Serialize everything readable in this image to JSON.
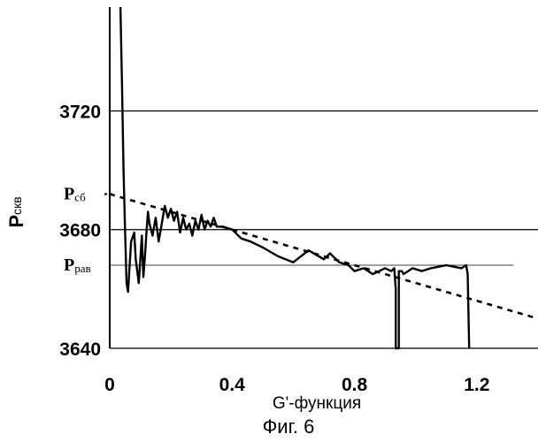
{
  "chart_data": {
    "type": "line",
    "ylabel": {
      "main": "P",
      "sub": "скв"
    },
    "xlabel": "G'-функция",
    "caption": "Фиг. 6",
    "xlim": [
      0,
      1.4
    ],
    "ylim": [
      3640,
      3755
    ],
    "x_ticks": [
      "0",
      "0.4",
      "0.8",
      "1.2"
    ],
    "x_tick_values": [
      0,
      0.4,
      0.8,
      1.2
    ],
    "y_ticks": [
      "3720",
      "3680",
      "3640"
    ],
    "y_tick_values": [
      3720,
      3680,
      3640
    ],
    "grid": "horizontal",
    "reference_lines": [
      {
        "label_main": "P",
        "label_sub": "сб",
        "y": 3692,
        "style": "dotted-marker"
      },
      {
        "label_main": "P",
        "label_sub": "рав",
        "y": 3668,
        "style": "thin-line"
      }
    ],
    "series": [
      {
        "style": "solid",
        "x": [
          0.035,
          0.04,
          0.045,
          0.05,
          0.055,
          0.06,
          0.065,
          0.07,
          0.08,
          0.085,
          0.095,
          0.1,
          0.105,
          0.11,
          0.115,
          0.12,
          0.125,
          0.13,
          0.14,
          0.15,
          0.16,
          0.17,
          0.18,
          0.185,
          0.19,
          0.2,
          0.21,
          0.22,
          0.23,
          0.24,
          0.25,
          0.26,
          0.27,
          0.28,
          0.29,
          0.3,
          0.31,
          0.32,
          0.33,
          0.34,
          0.35,
          0.37,
          0.4,
          0.43,
          0.46,
          0.5,
          0.55,
          0.6,
          0.65,
          0.7,
          0.72,
          0.75,
          0.78,
          0.8,
          0.83,
          0.86,
          0.9,
          0.92,
          0.93,
          0.935,
          0.935,
          0.945,
          0.945,
          0.955,
          0.96,
          0.99,
          1.02,
          1.05,
          1.1,
          1.15,
          1.165,
          1.17,
          1.175
        ],
        "y": [
          3755,
          3730,
          3700,
          3680,
          3662,
          3659,
          3668,
          3676,
          3679,
          3670,
          3662,
          3670,
          3678,
          3664,
          3671,
          3679,
          3686,
          3682,
          3678,
          3684,
          3676,
          3682,
          3688,
          3686,
          3684,
          3687,
          3683,
          3686,
          3679,
          3684,
          3680,
          3682,
          3678,
          3683,
          3680,
          3685,
          3680,
          3683,
          3681,
          3684,
          3681,
          3681,
          3680,
          3677,
          3676,
          3674,
          3671,
          3669,
          3673,
          3670,
          3672,
          3669,
          3668,
          3666,
          3667,
          3665,
          3667,
          3666,
          3667,
          3660,
          3640,
          3640,
          3666,
          3666,
          3665,
          3667,
          3666,
          3667,
          3668,
          3667,
          3668,
          3665,
          3640
        ]
      },
      {
        "style": "dashed",
        "x": [
          0,
          1.4
        ],
        "y": [
          3692,
          3650
        ]
      }
    ]
  }
}
